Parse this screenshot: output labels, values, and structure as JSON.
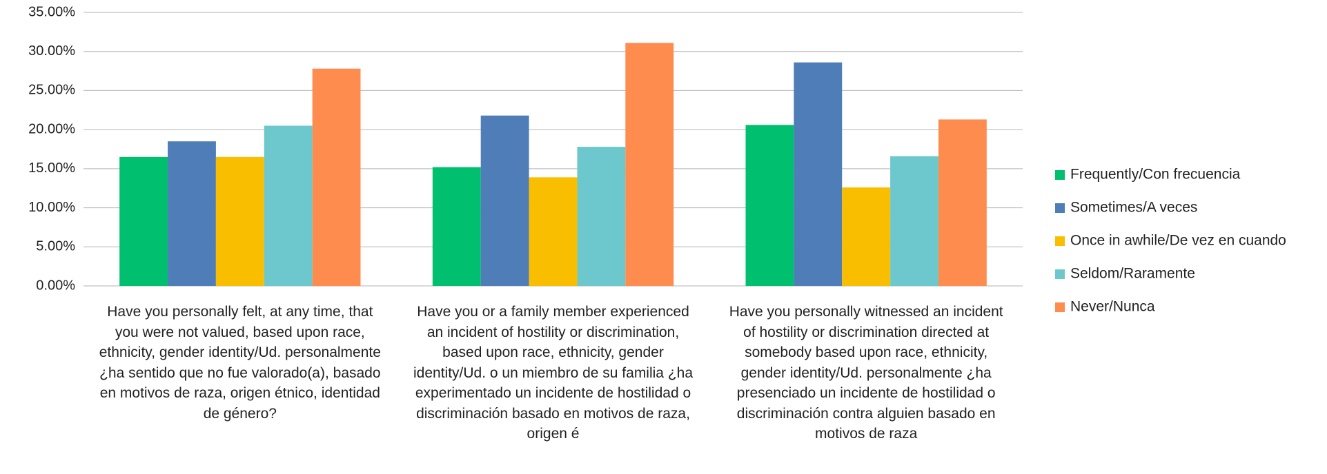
{
  "chart_data": {
    "type": "bar",
    "categories": [
      "Have you personally felt, at any time, that you were not valued, based upon race, ethnicity, gender identity/Ud. personalmente ¿ha sentido que no fue valorado(a), basado en motivos de raza, origen étnico, identidad de género?",
      "Have you or a family member experienced an incident of hostility or discrimination, based upon race, ethnicity, gender identity/Ud. o un miembro de su familia ¿ha experimentado un incidente de hostilidad o discriminación basado en motivos de raza, origen é",
      "Have you personally witnessed an incident of hostility or discrimination directed at somebody based upon race, ethnicity, gender identity/Ud. personalmente ¿ha presenciado un incidente de hostilidad o discriminación contra alguien basado en motivos de raza"
    ],
    "series": [
      {
        "name": "Frequently/Con frecuencia",
        "color": "#00bf6f",
        "values": [
          16.5,
          15.2,
          20.6
        ]
      },
      {
        "name": "Sometimes/A veces",
        "color": "#4f7db8",
        "values": [
          18.5,
          21.8,
          28.6
        ]
      },
      {
        "name": "Once in awhile/De vez en cuando",
        "color": "#f9be00",
        "values": [
          16.5,
          13.9,
          12.6
        ]
      },
      {
        "name": "Seldom/Raramente",
        "color": "#6cc8cc",
        "values": [
          20.5,
          17.8,
          16.6
        ]
      },
      {
        "name": "Never/Nunca",
        "color": "#ff8c4f",
        "values": [
          27.8,
          31.1,
          21.3
        ]
      }
    ],
    "ylim": [
      0,
      35
    ],
    "yticks": [
      {
        "value": 0,
        "label": "0.00%"
      },
      {
        "value": 5,
        "label": "5.00%"
      },
      {
        "value": 10,
        "label": "10.00%"
      },
      {
        "value": 15,
        "label": "15.00%"
      },
      {
        "value": 20,
        "label": "20.00%"
      },
      {
        "value": 25,
        "label": "25.00%"
      },
      {
        "value": 30,
        "label": "30.00%"
      },
      {
        "value": 35,
        "label": "35.00%"
      }
    ],
    "grid": true,
    "legend": "right"
  }
}
